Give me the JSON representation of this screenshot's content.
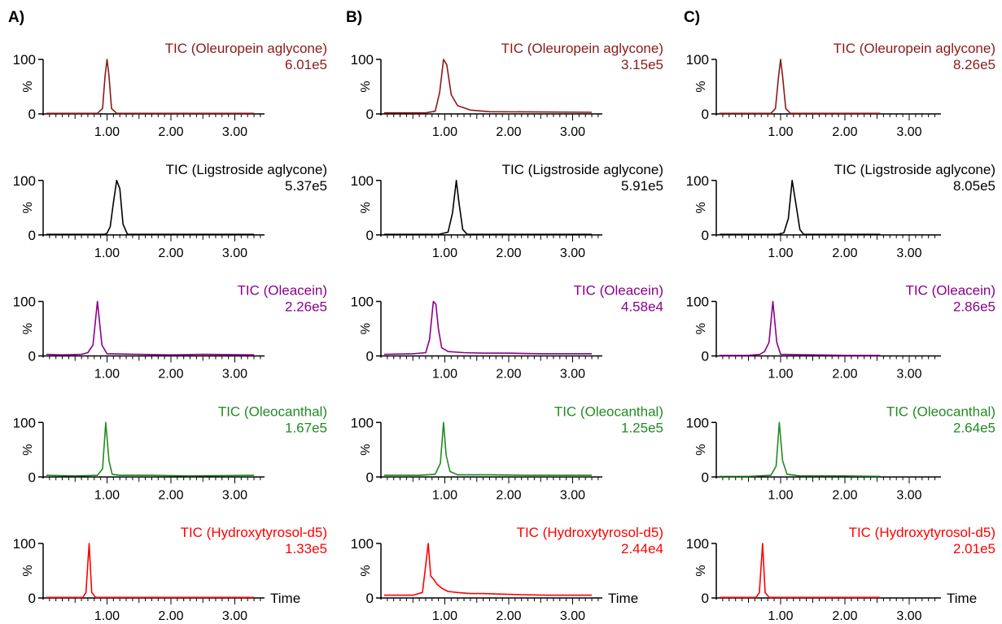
{
  "chart_data": [
    {
      "panel": "A)",
      "type": "line",
      "xlabel": "Time",
      "ylabel": "%",
      "xlim": [
        0,
        3.3
      ],
      "ylim": [
        0,
        100
      ],
      "xticks": [
        "1.00",
        "2.00",
        "3.00"
      ],
      "yticks": [
        "0",
        "100"
      ],
      "traces": [
        {
          "title": "TIC (Oleuropein aglycone)",
          "scale": "6.01e5",
          "color": "#8b1a1a",
          "x": [
            0.05,
            0.85,
            0.93,
            0.97,
            1.0,
            1.03,
            1.07,
            1.15,
            3.3
          ],
          "y": [
            1,
            1,
            10,
            70,
            100,
            70,
            10,
            1,
            1
          ]
        },
        {
          "title": "TIC (Ligstroside aglycone)",
          "scale": "5.37e5",
          "color": "#000000",
          "x": [
            0.05,
            0.95,
            1.0,
            1.05,
            1.1,
            1.15,
            1.2,
            1.25,
            1.32,
            3.3
          ],
          "y": [
            1,
            1,
            3,
            15,
            60,
            100,
            85,
            20,
            1,
            1
          ]
        },
        {
          "title": "TIC (Oleacein)",
          "scale": "2.26e5",
          "color": "#8b008b",
          "x": [
            0.05,
            0.3,
            0.6,
            0.7,
            0.78,
            0.85,
            0.92,
            1.0,
            1.5,
            2.0,
            2.5,
            3.3
          ],
          "y": [
            3,
            2,
            3,
            6,
            20,
            100,
            20,
            4,
            3,
            2,
            3,
            2
          ]
        },
        {
          "title": "TIC (Oleocanthal)",
          "scale": "1.67e5",
          "color": "#228b22",
          "x": [
            0.05,
            0.5,
            0.85,
            0.93,
            0.98,
            1.03,
            1.08,
            1.2,
            1.7,
            2.3,
            3.3
          ],
          "y": [
            3,
            2,
            3,
            15,
            100,
            30,
            5,
            3,
            3,
            2,
            3
          ]
        },
        {
          "title": "TIC (Hydroxytyrosol-d5)",
          "scale": "1.33e5",
          "color": "#ff0000",
          "x": [
            0.05,
            0.62,
            0.67,
            0.72,
            0.76,
            0.82,
            3.3
          ],
          "y": [
            1,
            1,
            10,
            100,
            10,
            1,
            1
          ]
        }
      ]
    },
    {
      "panel": "B)",
      "type": "line",
      "xlabel": "Time",
      "ylabel": "%",
      "xlim": [
        0,
        3.3
      ],
      "ylim": [
        0,
        100
      ],
      "xticks": [
        "1.00",
        "2.00",
        "3.00"
      ],
      "yticks": [
        "0",
        "100"
      ],
      "traces": [
        {
          "title": "TIC (Oleuropein aglycone)",
          "scale": "3.15e5",
          "color": "#8b1a1a",
          "x": [
            0.05,
            0.7,
            0.85,
            0.92,
            0.98,
            1.03,
            1.1,
            1.2,
            1.4,
            1.7,
            3.3
          ],
          "y": [
            2,
            2,
            5,
            40,
            100,
            90,
            35,
            15,
            7,
            4,
            3
          ]
        },
        {
          "title": "TIC (Ligstroside aglycone)",
          "scale": "5.91e5",
          "color": "#000000",
          "x": [
            0.05,
            0.9,
            1.05,
            1.12,
            1.18,
            1.22,
            1.28,
            1.35,
            3.3
          ],
          "y": [
            1,
            1,
            5,
            40,
            100,
            60,
            10,
            1,
            1
          ]
        },
        {
          "title": "TIC (Oleacein)",
          "scale": "4.58e4",
          "color": "#8b008b",
          "x": [
            0.05,
            0.5,
            0.7,
            0.76,
            0.82,
            0.86,
            0.9,
            0.95,
            1.05,
            1.3,
            1.6,
            2.0,
            2.5,
            3.3
          ],
          "y": [
            3,
            4,
            6,
            30,
            100,
            95,
            50,
            15,
            8,
            6,
            5,
            5,
            4,
            4
          ]
        },
        {
          "title": "TIC (Oleocanthal)",
          "scale": "1.25e5",
          "color": "#228b22",
          "x": [
            0.05,
            0.6,
            0.85,
            0.93,
            0.98,
            1.02,
            1.08,
            1.2,
            1.7,
            2.3,
            3.3
          ],
          "y": [
            3,
            3,
            5,
            25,
            100,
            40,
            10,
            4,
            4,
            3,
            3
          ]
        },
        {
          "title": "TIC (Hydroxytyrosol-d5)",
          "scale": "2.44e4",
          "color": "#ff0000",
          "x": [
            0.05,
            0.5,
            0.65,
            0.7,
            0.74,
            0.78,
            0.82,
            0.88,
            0.95,
            1.05,
            1.2,
            1.4,
            1.6,
            1.9,
            2.2,
            2.6,
            3.3
          ],
          "y": [
            5,
            5,
            10,
            60,
            100,
            40,
            35,
            25,
            18,
            12,
            10,
            8,
            8,
            7,
            6,
            5,
            5
          ]
        }
      ]
    },
    {
      "panel": "C)",
      "type": "line",
      "xlabel": "Time",
      "ylabel": "%",
      "xlim": [
        0,
        3.3
      ],
      "ylim": [
        0,
        100
      ],
      "xticks": [
        "1.00",
        "2.00",
        "3.00"
      ],
      "yticks": [
        "0",
        "100"
      ],
      "traces": [
        {
          "title": "TIC (Oleuropein aglycone)",
          "scale": "8.26e5",
          "color": "#8b1a1a",
          "x": [
            0.05,
            0.85,
            0.92,
            0.97,
            1.0,
            1.03,
            1.08,
            1.15,
            2.55
          ],
          "y": [
            1,
            1,
            10,
            70,
            100,
            70,
            10,
            1,
            1
          ]
        },
        {
          "title": "TIC (Ligstroside aglycone)",
          "scale": "8.05e5",
          "color": "#000000",
          "x": [
            0.05,
            0.95,
            1.05,
            1.12,
            1.18,
            1.24,
            1.3,
            1.36,
            2.55
          ],
          "y": [
            1,
            1,
            4,
            30,
            100,
            55,
            10,
            1,
            1
          ]
        },
        {
          "title": "TIC (Oleacein)",
          "scale": "2.86e5",
          "color": "#8b008b",
          "x": [
            0.05,
            0.5,
            0.68,
            0.75,
            0.82,
            0.88,
            0.94,
            1.0,
            1.5,
            2.0,
            2.55
          ],
          "y": [
            1,
            1,
            3,
            8,
            25,
            100,
            25,
            3,
            2,
            1,
            1
          ]
        },
        {
          "title": "TIC (Oleocanthal)",
          "scale": "2.64e5",
          "color": "#228b22",
          "x": [
            0.05,
            0.5,
            0.85,
            0.93,
            0.98,
            1.03,
            1.1,
            1.3,
            2.0,
            2.55
          ],
          "y": [
            1,
            1,
            3,
            20,
            100,
            30,
            5,
            2,
            2,
            1
          ]
        },
        {
          "title": "TIC (Hydroxytyrosol-d5)",
          "scale": "2.01e5",
          "color": "#ff0000",
          "x": [
            0.05,
            0.62,
            0.67,
            0.72,
            0.76,
            0.82,
            2.55
          ],
          "y": [
            1,
            1,
            10,
            100,
            10,
            1,
            1
          ]
        }
      ]
    }
  ]
}
